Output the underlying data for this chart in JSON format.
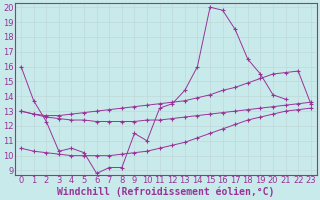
{
  "bg_color": "#c8eaea",
  "grid_color": "#c0d8d8",
  "line_color": "#993399",
  "xlabel": "Windchill (Refroidissement éolien,°C)",
  "xlabel_color": "#993399",
  "ylim": [
    9,
    20
  ],
  "xlim": [
    -0.5,
    23.5
  ],
  "yticks": [
    9,
    10,
    11,
    12,
    13,
    14,
    15,
    16,
    17,
    18,
    19,
    20
  ],
  "xticks": [
    0,
    1,
    2,
    3,
    4,
    5,
    6,
    7,
    8,
    9,
    10,
    11,
    12,
    13,
    14,
    15,
    16,
    17,
    18,
    19,
    20,
    21,
    22,
    23
  ],
  "series": [
    {
      "x": [
        0,
        1,
        2,
        3,
        4,
        5,
        6,
        7,
        8,
        9,
        10,
        11,
        12,
        13,
        14,
        15,
        16,
        17,
        18,
        19,
        20,
        21
      ],
      "y": [
        16.0,
        13.7,
        12.3,
        10.3,
        10.5,
        10.2,
        8.8,
        9.2,
        9.2,
        11.5,
        11.0,
        13.2,
        13.5,
        14.4,
        16.0,
        20.0,
        19.8,
        18.5,
        16.5,
        15.5,
        14.1,
        13.8
      ]
    },
    {
      "x": [
        0,
        1,
        2,
        3,
        4,
        5,
        6,
        7,
        8,
        9,
        10,
        11,
        12,
        13,
        14,
        15,
        16,
        17,
        18,
        19,
        20,
        21,
        22,
        23
      ],
      "y": [
        13.0,
        12.8,
        12.7,
        12.7,
        12.8,
        12.9,
        13.0,
        13.1,
        13.2,
        13.3,
        13.4,
        13.5,
        13.6,
        13.7,
        13.9,
        14.1,
        14.4,
        14.6,
        14.9,
        15.2,
        15.5,
        15.6,
        15.7,
        13.5
      ]
    },
    {
      "x": [
        0,
        1,
        2,
        3,
        4,
        5,
        6,
        7,
        8,
        9,
        10,
        11,
        12,
        13,
        14,
        15,
        16,
        17,
        18,
        19,
        20,
        21,
        22,
        23
      ],
      "y": [
        13.0,
        12.8,
        12.6,
        12.5,
        12.4,
        12.4,
        12.3,
        12.3,
        12.3,
        12.3,
        12.4,
        12.4,
        12.5,
        12.6,
        12.7,
        12.8,
        12.9,
        13.0,
        13.1,
        13.2,
        13.3,
        13.4,
        13.5,
        13.6
      ]
    },
    {
      "x": [
        0,
        1,
        2,
        3,
        4,
        5,
        6,
        7,
        8,
        9,
        10,
        11,
        12,
        13,
        14,
        15,
        16,
        17,
        18,
        19,
        20,
        21,
        22,
        23
      ],
      "y": [
        10.5,
        10.3,
        10.2,
        10.1,
        10.0,
        10.0,
        10.0,
        10.0,
        10.1,
        10.2,
        10.3,
        10.5,
        10.7,
        10.9,
        11.2,
        11.5,
        11.8,
        12.1,
        12.4,
        12.6,
        12.8,
        13.0,
        13.1,
        13.2
      ]
    }
  ],
  "tick_fontsize": 6,
  "xlabel_fontsize": 7
}
